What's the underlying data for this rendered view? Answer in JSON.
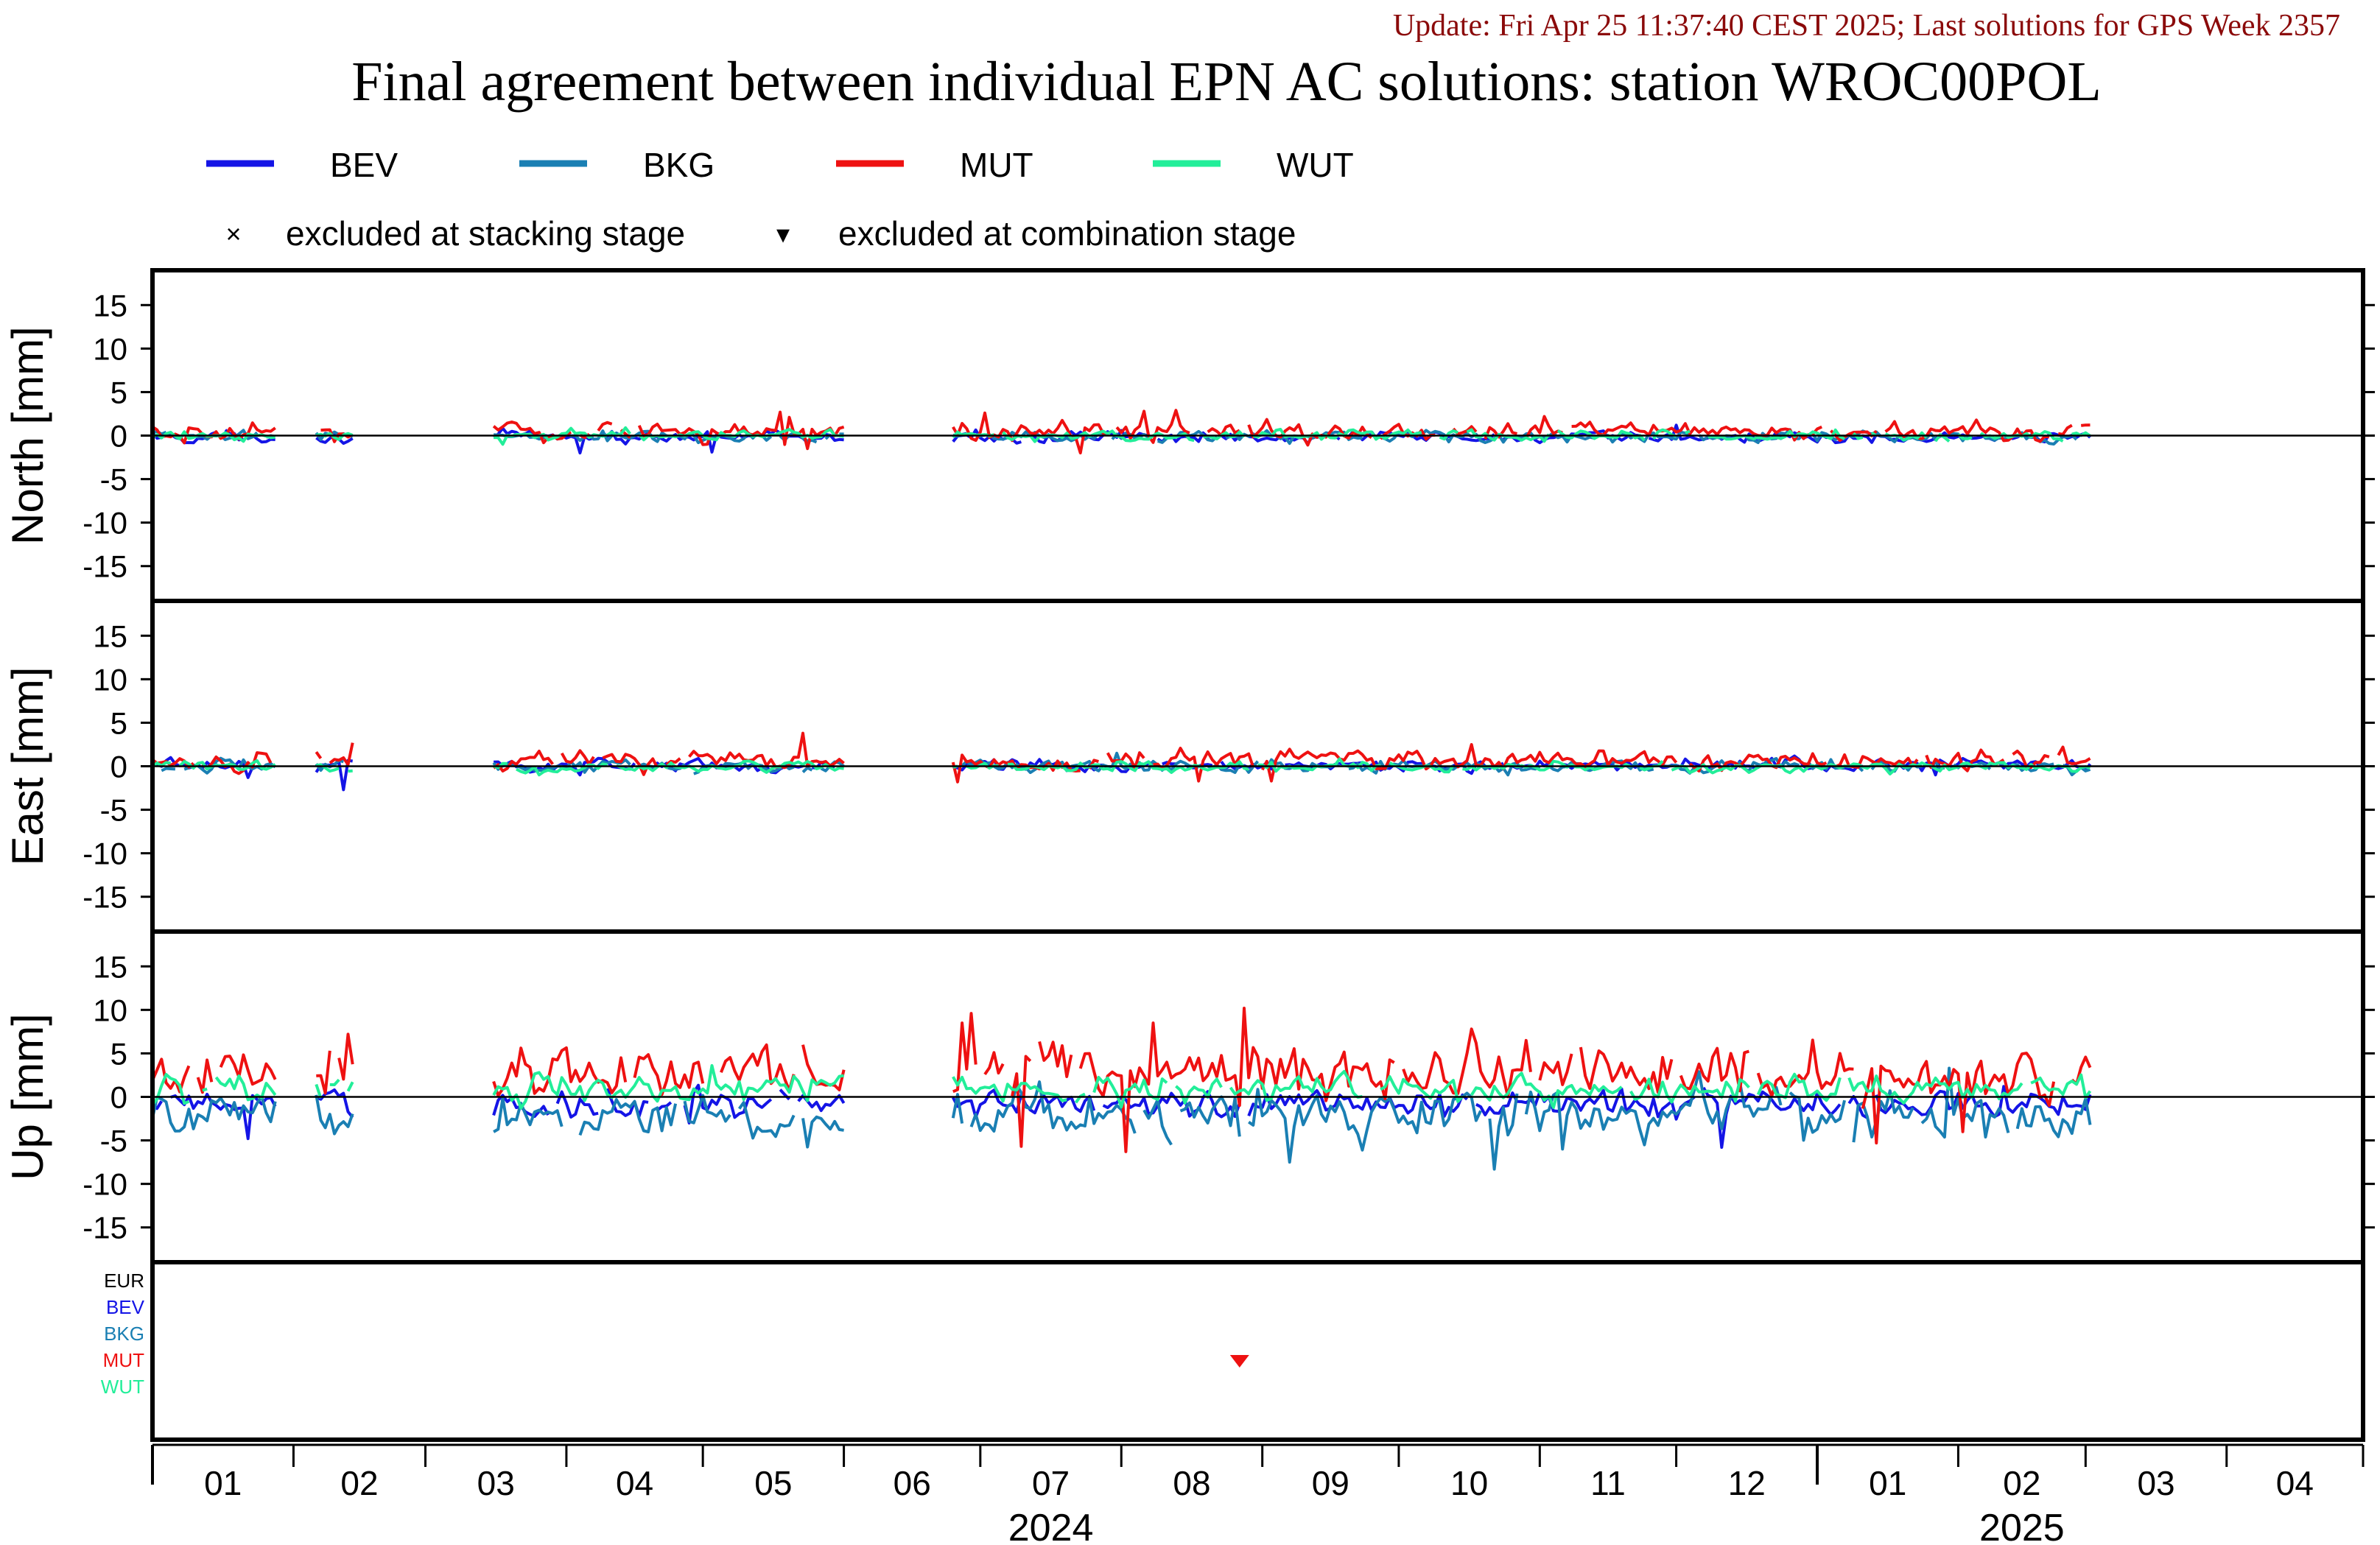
{
  "header": {
    "update_line": "Update: Fri Apr 25 11:37:40 CEST 2025; Last solutions for GPS Week 2357",
    "title": "Final agreement between individual EPN AC solutions: station WROC00POL"
  },
  "legend": {
    "series": [
      {
        "name": "BEV",
        "color": "#1414e6"
      },
      {
        "name": "BKG",
        "color": "#1a7fb3"
      },
      {
        "name": "MUT",
        "color": "#ee1111"
      },
      {
        "name": "WUT",
        "color": "#22ee99"
      }
    ],
    "markers": [
      {
        "symbol": "×",
        "label": "excluded at stacking stage"
      },
      {
        "symbol": "▾",
        "label": "excluded at combination stage"
      }
    ]
  },
  "exclusion_panel": {
    "labels": [
      {
        "text": "EUR",
        "color": "#000000"
      },
      {
        "text": "BEV",
        "color": "#1414e6"
      },
      {
        "text": "BKG",
        "color": "#1a7fb3"
      },
      {
        "text": "MUT",
        "color": "#ee1111"
      },
      {
        "text": "WUT",
        "color": "#22ee99"
      }
    ],
    "events": [
      {
        "series": "MUT",
        "stage": "combination",
        "date": "2024-08-27"
      }
    ]
  },
  "chart_data": {
    "type": "line",
    "x_type": "date",
    "xlim": [
      "2024-01-01",
      "2025-05-01"
    ],
    "ylim": [
      -19,
      19
    ],
    "y_ticks": [
      15,
      10,
      5,
      0,
      -5,
      -10,
      -15
    ],
    "month_ticks": [
      "01",
      "02",
      "03",
      "04",
      "05",
      "06",
      "07",
      "08",
      "09",
      "10",
      "11",
      "12",
      "01",
      "02",
      "03",
      "04"
    ],
    "year_labels": [
      {
        "text": "2024",
        "month_index": 6
      },
      {
        "text": "2025",
        "month_index": 13
      }
    ],
    "series_names": [
      "BEV",
      "BKG",
      "MUT",
      "WUT"
    ],
    "sampling": "daily",
    "coverage_gaps": [
      [
        "2024-01-29",
        "2024-02-06"
      ],
      [
        "2024-02-15",
        "2024-03-16"
      ],
      [
        "2024-06-02",
        "2024-06-25"
      ],
      [
        "2025-03-03",
        "2025-05-01"
      ]
    ],
    "panels": [
      {
        "name": "North",
        "ylabel": "North [mm]",
        "series": [
          {
            "name": "BEV",
            "mean": -0.2,
            "spread": 0.45,
            "spikes": [
              [
                "2024-01-22",
                -1.3
              ],
              [
                "2024-02-12",
                -0.9
              ],
              [
                "2024-04-04",
                -2.0
              ],
              [
                "2024-05-03",
                -1.9
              ],
              [
                "2024-12-01",
                1.2
              ]
            ]
          },
          {
            "name": "BKG",
            "mean": -0.1,
            "spread": 0.45,
            "spikes": [
              [
                "2024-09-07",
                -0.9
              ],
              [
                "2024-10-20",
                -0.8
              ]
            ]
          },
          {
            "name": "MUT",
            "mean": 0.4,
            "spread": 0.7,
            "spikes": [
              [
                "2024-05-18",
                2.7
              ],
              [
                "2024-05-20",
                2.1
              ],
              [
                "2024-07-02",
                2.6
              ],
              [
                "2024-08-06",
                2.8
              ],
              [
                "2024-08-13",
                2.9
              ],
              [
                "2024-11-02",
                2.2
              ],
              [
                "2024-05-24",
                -1.5
              ],
              [
                "2024-07-23",
                -2.0
              ]
            ]
          },
          {
            "name": "WUT",
            "mean": 0.0,
            "spread": 0.4,
            "spikes": [
              [
                "2024-03-18",
                -1.0
              ],
              [
                "2024-04-14",
                0.9
              ],
              [
                "2024-11-29",
                0.5
              ]
            ]
          }
        ]
      },
      {
        "name": "East",
        "ylabel": "East [mm]",
        "series": [
          {
            "name": "BEV",
            "mean": 0.1,
            "spread": 0.45,
            "spikes": [
              [
                "2024-01-22",
                -1.3
              ],
              [
                "2024-02-12",
                -2.7
              ],
              [
                "2024-04-04",
                -1.0
              ],
              [
                "2025-01-27",
                -1.0
              ]
            ]
          },
          {
            "name": "BKG",
            "mean": 0.0,
            "spread": 0.5,
            "spikes": [
              [
                "2024-07-31",
                1.5
              ],
              [
                "2024-10-25",
                -1.0
              ]
            ]
          },
          {
            "name": "MUT",
            "mean": 0.6,
            "spread": 0.75,
            "spikes": [
              [
                "2024-02-14",
                2.7
              ],
              [
                "2024-05-23",
                3.8
              ],
              [
                "2024-06-26",
                -1.8
              ],
              [
                "2024-08-18",
                -1.7
              ],
              [
                "2024-09-03",
                -1.7
              ],
              [
                "2024-10-17",
                2.5
              ],
              [
                "2025-02-24",
                2.2
              ]
            ]
          },
          {
            "name": "WUT",
            "mean": -0.1,
            "spread": 0.4,
            "spikes": [
              [
                "2024-03-26",
                -1.0
              ],
              [
                "2024-11-28",
                0.6
              ]
            ]
          }
        ]
      },
      {
        "name": "Up",
        "ylabel": "Up [mm]",
        "series": [
          {
            "name": "BEV",
            "mean": -0.8,
            "spread": 1.1,
            "spikes": [
              [
                "2024-01-22",
                -4.8
              ],
              [
                "2024-04-28",
                -3.0
              ],
              [
                "2024-09-25",
                -1.5
              ],
              [
                "2024-12-11",
                -5.8
              ],
              [
                "2025-02-11",
                1.2
              ]
            ]
          },
          {
            "name": "BKG",
            "mean": -2.0,
            "spread": 1.9,
            "spikes": [
              [
                "2024-08-12",
                -5.5
              ],
              [
                "2024-09-07",
                -7.5
              ],
              [
                "2024-10-22",
                -8.3
              ],
              [
                "2024-11-06",
                -6.0
              ],
              [
                "2025-01-30",
                3.3
              ],
              [
                "2025-02-26",
                -4.2
              ]
            ]
          },
          {
            "name": "MUT",
            "mean": 2.8,
            "spread": 2.1,
            "spikes": [
              [
                "2024-06-29",
                9.6
              ],
              [
                "2024-06-27",
                8.5
              ],
              [
                "2024-08-28",
                10.2
              ],
              [
                "2024-08-08",
                8.5
              ],
              [
                "2024-10-17",
                7.8
              ],
              [
                "2024-07-10",
                -5.7
              ],
              [
                "2024-08-02",
                -6.3
              ],
              [
                "2025-01-14",
                -5.3
              ],
              [
                "2025-02-02",
                -4.0
              ],
              [
                "2024-02-13",
                7.2
              ]
            ]
          },
          {
            "name": "WUT",
            "mean": 0.9,
            "spread": 1.0,
            "spikes": [
              [
                "2024-03-26",
                2.8
              ],
              [
                "2024-05-03",
                3.6
              ],
              [
                "2024-02-15",
                2.4
              ]
            ]
          }
        ]
      }
    ]
  }
}
